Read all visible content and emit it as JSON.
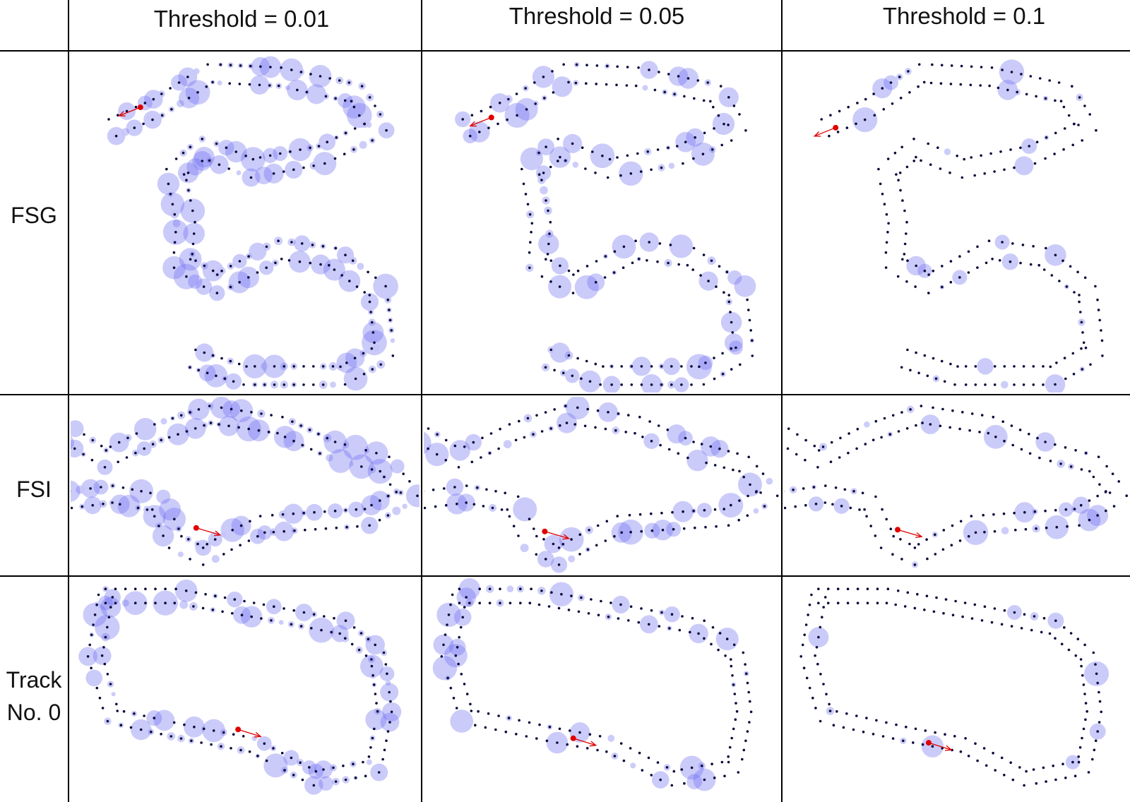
{
  "columns": [
    {
      "id": "t001",
      "label": "Threshold = 0.01",
      "density": 1.0
    },
    {
      "id": "t005",
      "label": "Threshold = 0.05",
      "density": 0.62
    },
    {
      "id": "t01",
      "label": "Threshold = 0.1",
      "density": 0.12
    }
  ],
  "rows": [
    {
      "id": "fsg",
      "label": "FSG",
      "label_lines": [
        "FSG"
      ]
    },
    {
      "id": "fsi",
      "label": "FSI",
      "label_lines": [
        "FSI"
      ]
    },
    {
      "id": "track0",
      "label": "Track No. 0",
      "label_lines": [
        "Track",
        "No. 0"
      ]
    }
  ],
  "colors": {
    "grid_line": "#000000",
    "cone": "#0a0a3c",
    "attention_circle": "#6b6bf0",
    "attention_circle_light": "#c4c4f8",
    "vehicle": "#e00000"
  }
}
